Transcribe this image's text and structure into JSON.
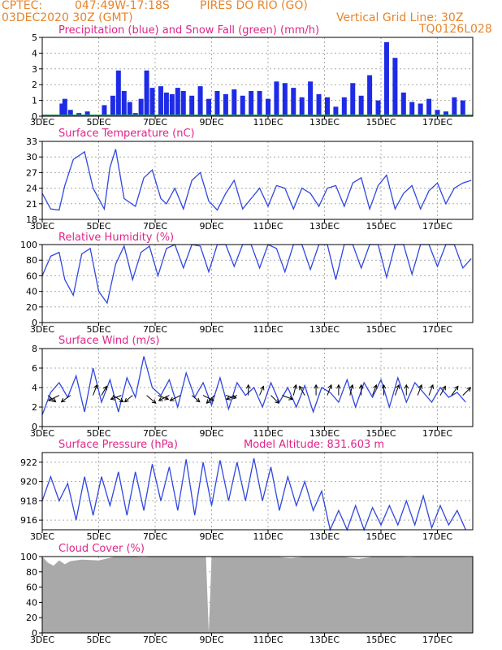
{
  "header": {
    "source": "CPTEC:",
    "coords": "047:49W-17:18S",
    "station": "PIRES DO RIO (GO)",
    "run": "03DEC2020 30Z (GMT)",
    "grid_note": "Vertical Grid Line: 30Z",
    "code": "TQ0126L028"
  },
  "colors": {
    "header": "#e8842a",
    "titles": "#e0248a",
    "precip": "#1e2be6",
    "snow": "#1aa34a",
    "line": "#2f47e0",
    "cloud": "#a9a9a9",
    "arrow": "#000000"
  },
  "chart_data": [
    {
      "type": "bar",
      "title": "Precipitation (blue) and Snow Fall (green) (mm/h)",
      "x_ticks": [
        "3DEC",
        "5DEC",
        "7DEC",
        "9DEC",
        "11DEC",
        "13DEC",
        "15DEC",
        "17DEC"
      ],
      "ylim": [
        0,
        5
      ],
      "y_ticks": [
        "0",
        "1",
        "2",
        "3",
        "4",
        "5"
      ],
      "grid": true,
      "x_days": [
        0.7,
        0.8,
        1.0,
        1.3,
        1.6,
        2.2,
        2.5,
        2.7,
        2.9,
        3.1,
        3.3,
        3.5,
        3.7,
        3.9,
        4.2,
        4.4,
        4.6,
        4.8,
        5.0,
        5.3,
        5.6,
        5.9,
        6.2,
        6.5,
        6.8,
        7.1,
        7.4,
        7.7,
        8.0,
        8.3,
        8.6,
        8.9,
        9.2,
        9.5,
        9.8,
        10.1,
        10.4,
        10.7,
        11.0,
        11.3,
        11.6,
        11.9,
        12.2,
        12.5,
        12.8,
        13.1,
        13.4,
        13.7,
        14.0,
        14.3,
        14.6,
        14.9
      ],
      "values": [
        0.8,
        1.1,
        0.4,
        0.2,
        0.3,
        0.7,
        1.3,
        2.9,
        1.6,
        0.9,
        0.2,
        1.1,
        2.9,
        1.8,
        1.9,
        1.5,
        1.4,
        1.8,
        1.6,
        1.3,
        1.9,
        1.1,
        1.6,
        1.4,
        1.7,
        1.3,
        1.6,
        1.6,
        1.1,
        2.2,
        2.1,
        1.8,
        1.2,
        2.2,
        1.4,
        1.2,
        0.6,
        1.2,
        2.1,
        1.3,
        2.6,
        1.0,
        4.7,
        3.7,
        1.5,
        0.9,
        0.8,
        1.1,
        0.4,
        0.3,
        1.2,
        1.0
      ],
      "snow_values": [
        0.0
      ]
    },
    {
      "type": "line",
      "title": "Surface Temperature (nC)",
      "x_ticks": [
        "3DEC",
        "5DEC",
        "7DEC",
        "9DEC",
        "11DEC",
        "13DEC",
        "15DEC",
        "17DEC"
      ],
      "ylim": [
        18,
        33
      ],
      "y_ticks": [
        "18",
        "21",
        "24",
        "27",
        "30",
        "33"
      ],
      "grid": true,
      "x_days": [
        0.0,
        0.3,
        0.6,
        0.8,
        1.1,
        1.5,
        1.8,
        2.2,
        2.4,
        2.6,
        2.9,
        3.3,
        3.6,
        3.9,
        4.2,
        4.4,
        4.7,
        5.0,
        5.3,
        5.6,
        5.9,
        6.2,
        6.5,
        6.8,
        7.1,
        7.4,
        7.7,
        8.0,
        8.3,
        8.6,
        8.9,
        9.2,
        9.5,
        9.8,
        10.1,
        10.4,
        10.7,
        11.0,
        11.3,
        11.6,
        11.9,
        12.2,
        12.5,
        12.8,
        13.1,
        13.4,
        13.7,
        14.0,
        14.3,
        14.6,
        14.9,
        15.2
      ],
      "values": [
        23.0,
        20.0,
        19.8,
        24.5,
        29.5,
        31.0,
        24.0,
        20.0,
        28.0,
        31.5,
        22.0,
        20.5,
        26.0,
        27.5,
        22.0,
        21.0,
        24.0,
        20.0,
        25.5,
        27.0,
        21.5,
        19.8,
        23.0,
        25.5,
        20.0,
        22.0,
        24.0,
        20.5,
        24.5,
        24.0,
        20.0,
        24.0,
        23.0,
        20.5,
        24.0,
        24.5,
        20.5,
        25.0,
        26.0,
        20.0,
        24.5,
        26.5,
        20.0,
        23.0,
        24.5,
        20.0,
        23.5,
        25.0,
        21.0,
        24.0,
        25.0,
        25.5
      ]
    },
    {
      "type": "line",
      "title": "Relative Humidity (%)",
      "x_ticks": [
        "3DEC",
        "5DEC",
        "7DEC",
        "9DEC",
        "11DEC",
        "13DEC",
        "15DEC",
        "17DEC"
      ],
      "ylim": [
        0,
        100
      ],
      "y_ticks": [
        "0",
        "20",
        "40",
        "60",
        "80",
        "100"
      ],
      "grid": true,
      "x_days": [
        0.0,
        0.3,
        0.6,
        0.8,
        1.1,
        1.4,
        1.7,
        2.0,
        2.3,
        2.6,
        2.9,
        3.2,
        3.5,
        3.8,
        4.1,
        4.4,
        4.7,
        5.0,
        5.3,
        5.6,
        5.9,
        6.2,
        6.5,
        6.8,
        7.1,
        7.4,
        7.7,
        8.0,
        8.3,
        8.6,
        8.9,
        9.2,
        9.5,
        9.8,
        10.1,
        10.4,
        10.7,
        11.0,
        11.3,
        11.6,
        11.9,
        12.2,
        12.5,
        12.8,
        13.1,
        13.4,
        13.7,
        14.0,
        14.3,
        14.6,
        14.9,
        15.2
      ],
      "values": [
        60,
        85,
        90,
        55,
        35,
        88,
        95,
        40,
        25,
        75,
        98,
        55,
        90,
        98,
        60,
        95,
        100,
        70,
        100,
        98,
        65,
        100,
        100,
        72,
        100,
        100,
        70,
        100,
        95,
        65,
        100,
        100,
        68,
        100,
        100,
        55,
        100,
        100,
        70,
        100,
        100,
        58,
        100,
        100,
        62,
        100,
        100,
        72,
        100,
        100,
        70,
        82
      ]
    },
    {
      "type": "line",
      "title": "Surface Wind (m/s)",
      "x_ticks": [
        "3DEC",
        "5DEC",
        "7DEC",
        "9DEC",
        "11DEC",
        "13DEC",
        "15DEC",
        "17DEC"
      ],
      "ylim": [
        0,
        8
      ],
      "y_ticks": [
        "0",
        "2",
        "4",
        "6",
        "8"
      ],
      "grid": true,
      "x_days": [
        0.0,
        0.3,
        0.6,
        0.9,
        1.2,
        1.5,
        1.8,
        2.1,
        2.4,
        2.7,
        3.0,
        3.3,
        3.6,
        3.9,
        4.2,
        4.5,
        4.8,
        5.1,
        5.4,
        5.7,
        6.0,
        6.3,
        6.6,
        6.9,
        7.2,
        7.5,
        7.8,
        8.1,
        8.4,
        8.7,
        9.0,
        9.3,
        9.6,
        9.9,
        10.2,
        10.5,
        10.8,
        11.1,
        11.4,
        11.7,
        12.0,
        12.3,
        12.6,
        12.9,
        13.2,
        13.5,
        13.8,
        14.1,
        14.4,
        14.7,
        15.0
      ],
      "values": [
        1.2,
        3.5,
        4.5,
        3.0,
        5.2,
        1.5,
        6.0,
        2.5,
        4.8,
        1.5,
        5.0,
        3.0,
        7.2,
        4.0,
        3.2,
        4.8,
        2.0,
        5.5,
        3.0,
        4.5,
        2.2,
        5.0,
        1.8,
        4.5,
        3.2,
        4.0,
        2.0,
        4.5,
        2.5,
        4.0,
        2.0,
        4.2,
        1.5,
        4.0,
        3.5,
        2.5,
        4.8,
        2.0,
        4.5,
        3.0,
        4.8,
        2.0,
        5.0,
        2.5,
        4.5,
        3.5,
        2.5,
        4.0,
        3.0,
        3.5,
        2.5
      ],
      "arrows": {
        "x_days": [
          0.2,
          0.6,
          1.0,
          1.8,
          2.1,
          2.5,
          2.8,
          3.2,
          3.7,
          4.1,
          4.5,
          4.9,
          5.3,
          5.7,
          6.1,
          6.5,
          6.9,
          7.3,
          7.7,
          8.1,
          8.5,
          8.9,
          9.3,
          9.7,
          10.1,
          10.5,
          10.9,
          11.3,
          11.7,
          12.1,
          12.5,
          12.9,
          13.3,
          13.7,
          14.1,
          14.5,
          14.9
        ],
        "dx": [
          0.6,
          -0.8,
          -0.7,
          0.3,
          0.4,
          0.8,
          -0.8,
          -0.6,
          0.7,
          0.8,
          -0.8,
          -0.8,
          0.6,
          0.8,
          -0.6,
          0.8,
          -0.8,
          0.0,
          0.3,
          0.6,
          0.8,
          0.2,
          -0.4,
          0.0,
          0.3,
          0.0,
          0.2,
          0.0,
          0.3,
          0.0,
          0.3,
          0.0,
          0.3,
          0.3,
          0.4,
          0.5,
          0.6
        ],
        "dy": [
          0.5,
          0.4,
          0.5,
          -0.8,
          -0.7,
          0.5,
          0.3,
          0.5,
          0.6,
          0.3,
          0.4,
          0.4,
          0.5,
          0.4,
          0.6,
          0.2,
          0.3,
          -0.8,
          -0.7,
          0.6,
          0.3,
          -0.8,
          -0.7,
          -0.8,
          -0.8,
          -0.8,
          -0.8,
          -0.8,
          -0.8,
          -0.8,
          -0.8,
          -0.8,
          -0.8,
          -0.8,
          -0.7,
          -0.7,
          -0.6
        ]
      }
    },
    {
      "type": "line",
      "title": "Surface Pressure (hPa)",
      "annotation": "Model Altitude: 831.603 m",
      "x_ticks": [
        "3DEC",
        "5DEC",
        "7DEC",
        "9DEC",
        "11DEC",
        "13DEC",
        "15DEC",
        "17DEC"
      ],
      "ylim": [
        915,
        923
      ],
      "y_ticks": [
        "916",
        "918",
        "920",
        "922"
      ],
      "grid": true,
      "x_days": [
        0.0,
        0.3,
        0.6,
        0.9,
        1.2,
        1.5,
        1.8,
        2.1,
        2.4,
        2.7,
        3.0,
        3.3,
        3.6,
        3.9,
        4.2,
        4.5,
        4.8,
        5.1,
        5.4,
        5.7,
        6.0,
        6.3,
        6.6,
        6.9,
        7.2,
        7.5,
        7.8,
        8.1,
        8.4,
        8.7,
        9.0,
        9.3,
        9.6,
        9.9,
        10.2,
        10.5,
        10.8,
        11.1,
        11.4,
        11.7,
        12.0,
        12.3,
        12.6,
        12.9,
        13.2,
        13.5,
        13.8,
        14.1,
        14.4,
        14.7,
        15.0
      ],
      "values": [
        918.0,
        920.5,
        918.0,
        919.8,
        916.0,
        920.5,
        916.5,
        920.5,
        917.5,
        921.0,
        916.5,
        921.0,
        917.0,
        921.8,
        918.0,
        921.5,
        917.0,
        922.3,
        916.5,
        922.0,
        917.5,
        922.2,
        918.0,
        922.0,
        918.0,
        922.4,
        918.0,
        921.5,
        917.0,
        920.5,
        917.5,
        920.0,
        917.0,
        919.0,
        915.0,
        917.0,
        915.0,
        917.5,
        915.0,
        917.3,
        915.5,
        917.5,
        915.5,
        918.0,
        915.5,
        918.5,
        915.2,
        917.5,
        915.5,
        917.0,
        915.0
      ]
    },
    {
      "type": "area",
      "title": "Cloud Cover (%)",
      "x_ticks": [
        "3DEC",
        "5DEC",
        "7DEC",
        "9DEC",
        "11DEC",
        "13DEC",
        "15DEC",
        "17DEC"
      ],
      "ylim": [
        0,
        100
      ],
      "y_ticks": [
        "0",
        "20",
        "40",
        "60",
        "80",
        "100"
      ],
      "grid": true,
      "x_days": [
        0.0,
        0.2,
        0.4,
        0.6,
        0.8,
        1.0,
        1.4,
        2.0,
        2.6,
        3.0,
        3.6,
        4.0,
        4.6,
        5.2,
        5.8,
        5.9,
        6.0,
        6.6,
        7.0,
        7.6,
        8.2,
        8.8,
        9.4,
        10.0,
        10.6,
        11.2,
        11.8,
        12.4,
        13.0,
        13.6,
        14.2,
        14.8,
        15.2
      ],
      "values": [
        100,
        92,
        88,
        95,
        90,
        94,
        96,
        95,
        100,
        100,
        99,
        100,
        100,
        100,
        100,
        0,
        100,
        100,
        100,
        100,
        100,
        98,
        100,
        100,
        100,
        97,
        100,
        100,
        99,
        100,
        100,
        100,
        100
      ]
    }
  ]
}
